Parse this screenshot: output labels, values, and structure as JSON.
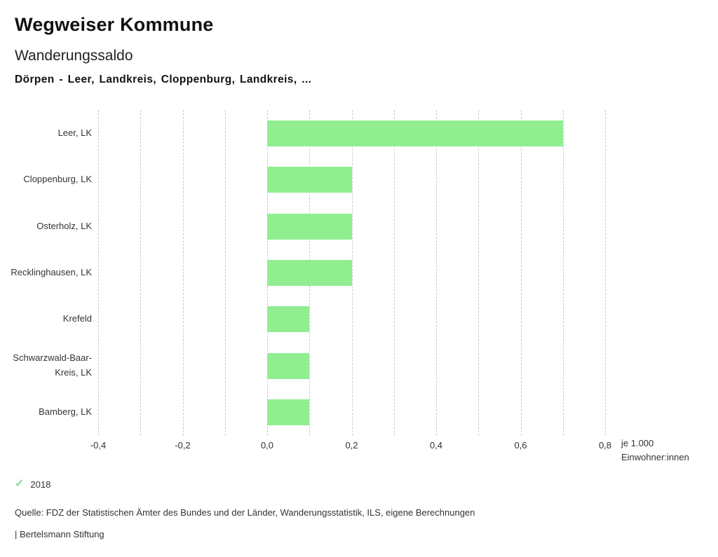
{
  "header": {
    "title": "Wegweiser Kommune",
    "subtitle": "Wanderungssaldo",
    "region_line": "Dörpen - Leer, Landkreis, Cloppenburg, Landkreis, ..."
  },
  "chart_data": {
    "type": "bar",
    "orientation": "horizontal",
    "title": "Wanderungssaldo",
    "categories": [
      "Leer, LK",
      "Cloppenburg, LK",
      "Osterholz, LK",
      "Recklinghausen, LK",
      "Krefeld",
      "Schwarzwald-Baar-Kreis, LK",
      "Bamberg, LK"
    ],
    "values": [
      0.7,
      0.2,
      0.2,
      0.2,
      0.1,
      0.1,
      0.1
    ],
    "xlim": [
      -0.4,
      0.8
    ],
    "x_ticks": [
      -0.4,
      -0.2,
      0.0,
      0.2,
      0.4,
      0.6,
      0.8
    ],
    "x_tick_labels": [
      "-0,4",
      "-0,2",
      "0,0",
      "0,2",
      "0,4",
      "0,6",
      "0,8"
    ],
    "grid_step": 0.1,
    "grid": true,
    "xlabel_line1": "je 1.000",
    "xlabel_line2": "Einwohner:innen",
    "bar_color": "#90ee90",
    "legend_position": "bottom-left"
  },
  "legend": {
    "check_icon": "✓",
    "check_color": "#8dd98d",
    "year": "2018"
  },
  "footer": {
    "source": "Quelle: FDZ der Statistischen Ämter des Bundes und der Länder, Wanderungsstatistik, ILS, eigene Berechnungen",
    "brand": "| Bertelsmann Stiftung"
  }
}
